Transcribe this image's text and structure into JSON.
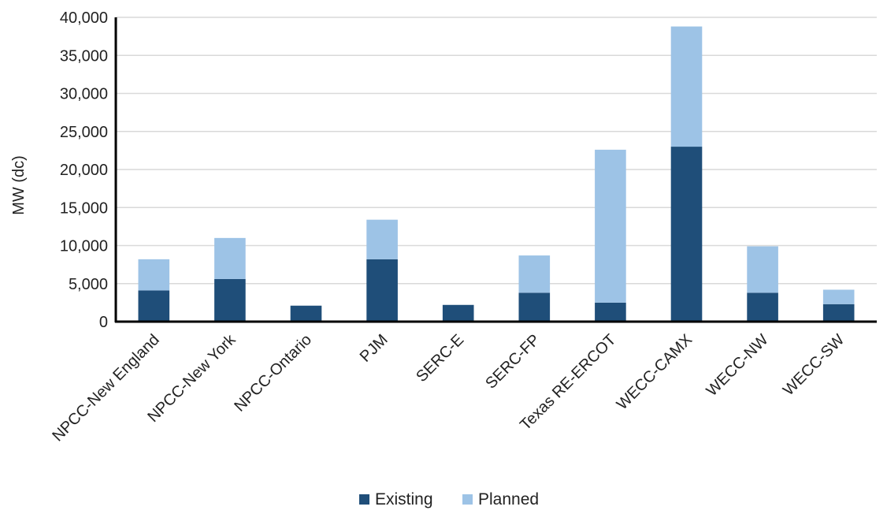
{
  "chart_data": {
    "type": "bar",
    "stacked": true,
    "title": "",
    "xlabel": "",
    "ylabel": "MW (dc)",
    "ylim": [
      0,
      40000
    ],
    "yticks": [
      0,
      5000,
      10000,
      15000,
      20000,
      25000,
      30000,
      35000,
      40000
    ],
    "ytick_labels": [
      "0",
      "5,000",
      "10,000",
      "15,000",
      "20,000",
      "25,000",
      "30,000",
      "35,000",
      "40,000"
    ],
    "grid": true,
    "legend_position": "bottom-center",
    "categories": [
      "NPCC-New England",
      "NPCC-New York",
      "NPCC-Ontario",
      "PJM",
      "SERC-E",
      "SERC-FP",
      "Texas RE-ERCOT",
      "WECC-CAMX",
      "WECC-NW",
      "WECC-SW"
    ],
    "series": [
      {
        "name": "Existing",
        "color": "#1f4e79",
        "values": [
          4100,
          5600,
          2100,
          8200,
          2200,
          3800,
          2500,
          23000,
          3800,
          2300
        ]
      },
      {
        "name": "Planned",
        "color": "#9dc3e6",
        "values": [
          4100,
          5400,
          0,
          5200,
          0,
          4900,
          20100,
          15800,
          6100,
          1900
        ]
      }
    ]
  }
}
